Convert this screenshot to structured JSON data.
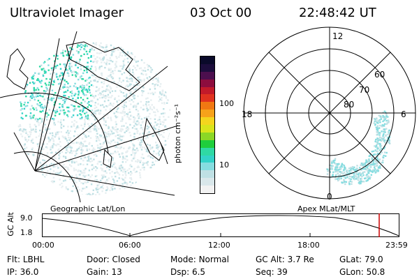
{
  "header": {
    "instrument": "Ultraviolet Imager",
    "date": "03 Oct 00",
    "time": "22:48:42 UT"
  },
  "colorbar": {
    "unit_label": "photon cm⁻²s⁻¹",
    "ticks": [
      "100",
      "10"
    ],
    "colors": [
      "#f2f2f2",
      "#d9e7ea",
      "#bfe0e4",
      "#86dde0",
      "#33d3c8",
      "#2fd9a4",
      "#1fce3c",
      "#8bd726",
      "#d9e41c",
      "#f4d51e",
      "#f7a21a",
      "#f07812",
      "#e0321f",
      "#c21a2a",
      "#8d0d3e",
      "#4c0f4e",
      "#1c0d3c",
      "#0a0a2a"
    ]
  },
  "polar": {
    "labels": {
      "top": "12",
      "bottom": "0",
      "left": "18",
      "right": "6"
    },
    "lat_labels": [
      "60",
      "70",
      "80"
    ]
  },
  "maps": {
    "left_caption": "Geographic Lat/Lon",
    "right_caption": "Apex MLat/MLT"
  },
  "timeline": {
    "axis_title": "GC Alt",
    "y_ticks": [
      "9.0",
      "1.8"
    ],
    "x_ticks": [
      "00:00",
      "06:00",
      "12:00",
      "18:00",
      "23:59"
    ],
    "current_marker_color": "#cc0000"
  },
  "footer": {
    "row1": [
      {
        "label": "Flt:",
        "value": "LBHL"
      },
      {
        "label": "Door:",
        "value": "Closed"
      },
      {
        "label": "Mode:",
        "value": "Normal"
      },
      {
        "label": "GC Alt:",
        "value": "3.7 Re"
      },
      {
        "label": "GLat:",
        "value": "79.0"
      }
    ],
    "row2": [
      {
        "label": "IP:",
        "value": "36.0"
      },
      {
        "label": "Gain:",
        "value": "13"
      },
      {
        "label": "Dsp:",
        "value": "6.5"
      },
      {
        "label": "Seq:",
        "value": "39"
      },
      {
        "label": "GLon:",
        "value": "50.8"
      }
    ]
  }
}
